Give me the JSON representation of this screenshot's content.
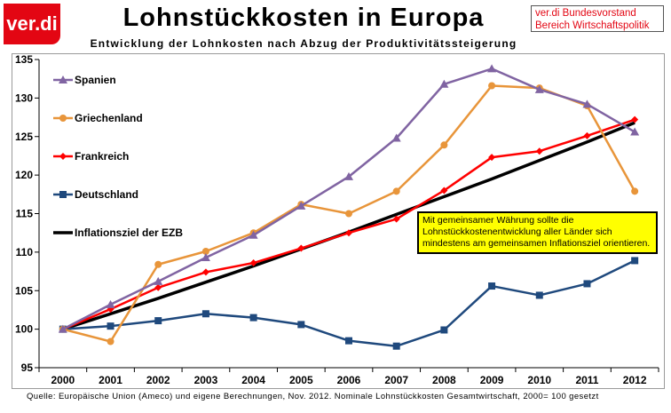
{
  "header": {
    "logo": "ver.di",
    "title": "Lohnstückkosten in Europa",
    "subtitle": "Entwicklung der Lohnkosten nach Abzug der Produktivitätssteigerung",
    "org_line1": "ver.di Bundesvorstand",
    "org_line2": "Bereich Wirtschaftspolitik"
  },
  "note": "Mit gemeinsamer Währung sollte die Lohnstückkostenentwicklung aller Länder sich mindestens am gemeinsamen Inflationsziel orientieren.",
  "source": "Quelle: Europäische Union (Ameco) und eigene Berechnungen, Nov. 2012. Nominale Lohnstückkosten Gesamtwirtschaft, 2000= 100 gesetzt",
  "colors": {
    "spanien": "#8064a2",
    "griechenland": "#e8953a",
    "frankreich": "#ff0000",
    "deutschland": "#1f497d",
    "ezb": "#000000",
    "brand": "#e30613",
    "note_bg": "#ffff00"
  },
  "chart_data": {
    "type": "line",
    "categories": [
      "2000",
      "2001",
      "2002",
      "2003",
      "2004",
      "2005",
      "2006",
      "2007",
      "2008",
      "2009",
      "2010",
      "2011",
      "2012"
    ],
    "ylim": [
      95,
      135
    ],
    "yticks": [
      95,
      100,
      105,
      110,
      115,
      120,
      125,
      130,
      135
    ],
    "grid": false,
    "legend_position": "top-left",
    "series": [
      {
        "name": "Spanien",
        "color": "#8064a2",
        "marker": "triangle",
        "values": [
          100,
          103.2,
          106.2,
          109.3,
          112.2,
          116.0,
          119.8,
          124.8,
          131.8,
          133.8,
          131.1,
          129.2,
          125.6
        ]
      },
      {
        "name": "Griechenland",
        "color": "#e8953a",
        "marker": "circle",
        "values": [
          100,
          98.4,
          108.4,
          110.1,
          112.5,
          116.2,
          115.0,
          117.9,
          123.9,
          131.6,
          131.3,
          129.0,
          117.9
        ]
      },
      {
        "name": "Frankreich",
        "color": "#ff0000",
        "marker": "diamond",
        "values": [
          100,
          102.6,
          105.4,
          107.4,
          108.6,
          110.5,
          112.5,
          114.3,
          118.0,
          122.3,
          123.1,
          125.1,
          127.2
        ]
      },
      {
        "name": "Deutschland",
        "color": "#1f497d",
        "marker": "square",
        "values": [
          100,
          100.4,
          101.1,
          102.0,
          101.5,
          100.6,
          98.5,
          97.8,
          99.9,
          105.6,
          104.4,
          105.9,
          108.9
        ]
      },
      {
        "name": "Inflationsziel der EZB",
        "color": "#000000",
        "marker": "none",
        "values": [
          100,
          102.0,
          104.0,
          106.1,
          108.2,
          110.4,
          112.6,
          114.9,
          117.2,
          119.5,
          121.9,
          124.3,
          126.8
        ]
      }
    ]
  }
}
